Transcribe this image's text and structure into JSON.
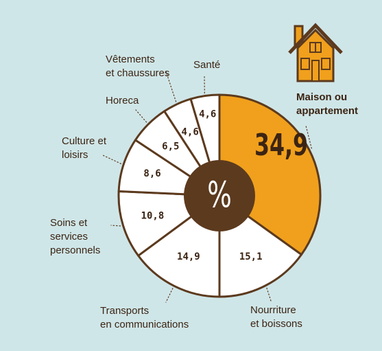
{
  "colors": {
    "background": "#cfe6e8",
    "outline": "#5c3a1e",
    "highlight": "#f0a01c",
    "slice_fill": "#ffffff",
    "center": "#5c3a1e",
    "center_text": "#ffffff",
    "text": "#3b2413",
    "house_fill": "#f0a01c",
    "house_outline": "#5c3a1e"
  },
  "icons": {
    "house": "house-icon"
  },
  "center_label": "%",
  "chart_data": {
    "type": "pie",
    "title": "",
    "unit": "%",
    "slices": [
      {
        "key": "maison",
        "label": "Maison ou appartement",
        "value": 34.9,
        "value_label": "34,9",
        "highlight": true
      },
      {
        "key": "nourriture",
        "label": "Nourriture et boissons",
        "value": 15.1,
        "value_label": "15,1",
        "highlight": false
      },
      {
        "key": "transports",
        "label": "Transports en communications",
        "value": 14.9,
        "value_label": "14,9",
        "highlight": false
      },
      {
        "key": "soins",
        "label": "Soins et services personnels",
        "value": 10.8,
        "value_label": "10,8",
        "highlight": false
      },
      {
        "key": "culture",
        "label": "Culture et loisirs",
        "value": 8.6,
        "value_label": "8,6",
        "highlight": false
      },
      {
        "key": "horeca",
        "label": "Horeca",
        "value": 6.5,
        "value_label": "6,5",
        "highlight": false
      },
      {
        "key": "vetements",
        "label": "Vêtements et chaussures",
        "value": 4.6,
        "value_label": "4,6",
        "highlight": false
      },
      {
        "key": "sante",
        "label": "Santé",
        "value": 4.6,
        "value_label": "4,6",
        "highlight": false
      }
    ]
  },
  "labels": {
    "maison": "Maison ou\nappartement",
    "nourriture": "Nourriture\net boissons",
    "transports": "Transports\nen communications",
    "soins": "Soins et\nservices\npersonnels",
    "culture": "Culture et\nloisirs",
    "horeca": "Horeca",
    "vetements": "Vêtements\net chaussures",
    "sante": "Santé"
  }
}
